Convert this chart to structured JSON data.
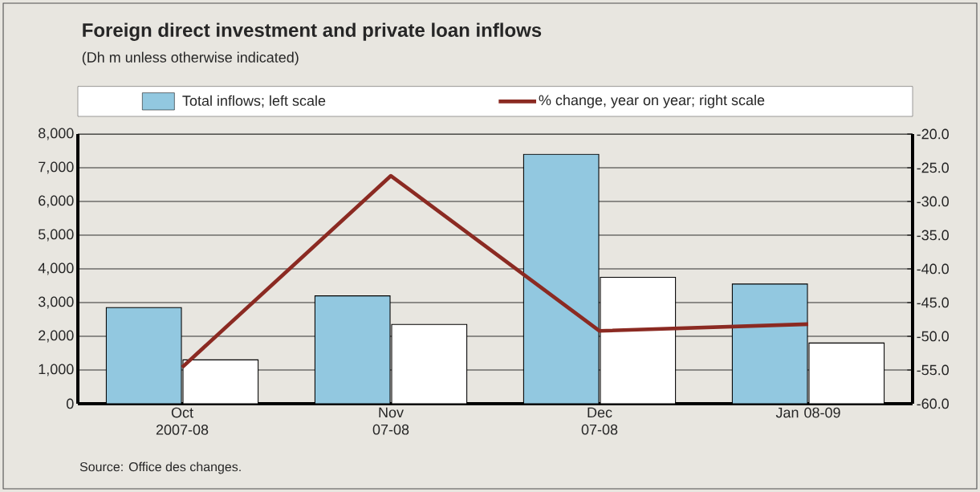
{
  "chart_data": {
    "type": "bar",
    "title": "Foreign direct investment and private loan inflows",
    "subtitle": "(Dh m unless otherwise indicated)",
    "categories": [
      "Oct 2007-08",
      "Nov 07-08",
      "Dec 07-08",
      "Jan 08-09"
    ],
    "series": [
      {
        "name": "Total inflows; left scale",
        "color": "#92c8e0",
        "values": [
          2850,
          3200,
          7400,
          3550
        ]
      },
      {
        "color": "#ffffff",
        "values": [
          1300,
          2350,
          3750,
          1800
        ]
      },
      {
        "name": "% change, year on year; right scale",
        "type": "line",
        "axis": "y2",
        "color": "#8b2a22",
        "values": [
          -54.6,
          -26.2,
          -49.2,
          -48.2
        ]
      }
    ],
    "ylim": [
      0,
      8000
    ],
    "yticks": [
      0,
      {
        "value": 1000,
        "label": "1,000"
      },
      {
        "value": 2000,
        "label": "2,000"
      },
      {
        "value": 3000,
        "label": "3,000"
      },
      {
        "value": 4000,
        "label": "4,000"
      },
      {
        "value": 5000,
        "label": "5,000"
      },
      {
        "value": 6000,
        "label": "6,000"
      },
      {
        "value": 7000,
        "label": "7,000"
      },
      {
        "value": 8000,
        "label": "8,000"
      }
    ],
    "y2lim": [
      -60,
      -20
    ],
    "y2ticks": [
      {
        "value": -60,
        "label": "-60.0"
      },
      {
        "value": -55,
        "label": "-55.0"
      },
      {
        "value": -50,
        "label": "-50.0"
      },
      {
        "value": -45,
        "label": "-45.0"
      },
      {
        "value": -40,
        "label": "-40.0"
      },
      {
        "value": -35,
        "label": "-35.0"
      },
      {
        "value": -30,
        "label": "-30.0"
      },
      {
        "value": -25,
        "label": "-25.0"
      },
      {
        "value": -20,
        "label": "-20.0"
      }
    ],
    "grid": "y",
    "legend": "top",
    "marker": "none",
    "line_style": "solid",
    "annotations": [
      "Source: Office des changes."
    ]
  }
}
